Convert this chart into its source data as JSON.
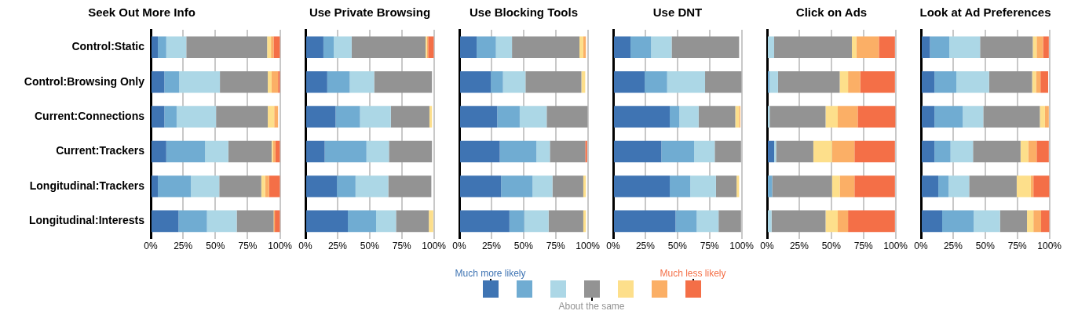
{
  "chart_data": [
    {
      "type": "bar",
      "orientation": "horizontal",
      "stacked": true,
      "title": "Seek Out More Info",
      "categories": [
        "Control:Static",
        "Control:Browsing Only",
        "Current:Connections",
        "Current:Trackers",
        "Longitudinal:Trackers",
        "Longitudinal:Interests"
      ],
      "xlim": [
        0,
        100
      ],
      "xticks": [
        {
          "value": 0,
          "label": "0%"
        },
        {
          "value": 25,
          "label": "25%"
        },
        {
          "value": 50,
          "label": "50%"
        },
        {
          "value": 75,
          "label": "75%"
        },
        {
          "value": 100,
          "label": "100%"
        }
      ],
      "grid": "x",
      "legend": "bottom",
      "series": [
        {
          "name": "Much more likely",
          "color": "#3f74b3",
          "values": [
            5.5,
            10.5,
            10.5,
            12,
            5.5,
            21.5
          ]
        },
        {
          "color": "#70acd2",
          "values": [
            6.5,
            11.5,
            9.5,
            30,
            25.5,
            22
          ]
        },
        {
          "color": "#acd7e6",
          "values": [
            15.5,
            31.5,
            30.5,
            18,
            22,
            23
          ]
        },
        {
          "name": "About the same",
          "color": "#939393",
          "values": [
            62.5,
            37,
            40,
            33.5,
            32.5,
            28.5
          ]
        },
        {
          "color": "#fddf8b",
          "values": [
            3,
            3,
            5,
            1,
            3,
            0
          ]
        },
        {
          "color": "#fbaf66",
          "values": [
            2,
            5,
            3,
            2,
            3,
            1
          ]
        },
        {
          "name": "Much less likely",
          "color": "#f46f47",
          "values": [
            5,
            1.5,
            0,
            3.5,
            8.5,
            4
          ]
        }
      ]
    },
    {
      "type": "bar",
      "orientation": "horizontal",
      "stacked": true,
      "title": "Use Private Browsing",
      "categories": [
        null,
        null,
        null,
        null,
        null,
        null
      ],
      "xlim": [
        0,
        100
      ],
      "xticks": [
        {
          "value": 0,
          "label": "0%"
        },
        {
          "value": 25,
          "label": "25%"
        },
        {
          "value": 50,
          "label": "50%"
        },
        {
          "value": 75,
          "label": "75%"
        },
        {
          "value": 100,
          "label": "100%"
        }
      ],
      "grid": "x",
      "tick_labels": "x",
      "series": [
        {
          "color": "#3f74b3",
          "values": [
            14,
            17,
            23.5,
            15,
            24.5,
            33
          ]
        },
        {
          "color": "#70acd2",
          "values": [
            8,
            17.5,
            19,
            32.5,
            14.5,
            22
          ]
        },
        {
          "color": "#acd7e6",
          "values": [
            14,
            19,
            24,
            17.5,
            25.5,
            15.5
          ]
        },
        {
          "color": "#939393",
          "values": [
            57.5,
            45,
            30,
            33.5,
            33.5,
            25.5
          ]
        },
        {
          "color": "#fddf8b",
          "values": [
            1,
            0,
            2,
            0,
            0,
            3.5
          ]
        },
        {
          "color": "#fbaf66",
          "values": [
            1,
            0,
            0,
            0,
            0,
            0
          ]
        },
        {
          "color": "#f46f47",
          "values": [
            4.5,
            0,
            0,
            0,
            0,
            0
          ]
        }
      ]
    },
    {
      "type": "bar",
      "orientation": "horizontal",
      "stacked": true,
      "title": "Use Blocking Tools",
      "categories": [
        null,
        null,
        null,
        null,
        null,
        null
      ],
      "xlim": [
        0,
        100
      ],
      "xticks": [
        {
          "value": 0,
          "label": "0%"
        },
        {
          "value": 25,
          "label": "25%"
        },
        {
          "value": 50,
          "label": "50%"
        },
        {
          "value": 75,
          "label": "75%"
        },
        {
          "value": 100,
          "label": "100%"
        }
      ],
      "grid": "x",
      "tick_labels": "x",
      "series": [
        {
          "color": "#3f74b3",
          "values": [
            13.5,
            24.5,
            29.5,
            31.5,
            32.5,
            39
          ]
        },
        {
          "color": "#70acd2",
          "values": [
            15,
            9.5,
            17.5,
            28.5,
            24.5,
            11.5
          ]
        },
        {
          "color": "#acd7e6",
          "values": [
            12.5,
            17.5,
            21,
            10.5,
            15.5,
            19
          ]
        },
        {
          "color": "#939393",
          "values": [
            52.5,
            43.5,
            32,
            27.5,
            24,
            27
          ]
        },
        {
          "color": "#fddf8b",
          "values": [
            3,
            3,
            0,
            0,
            2,
            2
          ]
        },
        {
          "color": "#fbaf66",
          "values": [
            2,
            0,
            0,
            0,
            0,
            0
          ]
        },
        {
          "color": "#f46f47",
          "values": [
            0,
            0,
            0,
            1.5,
            0,
            0
          ]
        }
      ]
    },
    {
      "type": "bar",
      "orientation": "horizontal",
      "stacked": true,
      "title": "Use DNT",
      "categories": [
        null,
        null,
        null,
        null,
        null,
        null
      ],
      "xlim": [
        0,
        100
      ],
      "xticks": [
        {
          "value": 0,
          "label": "0%"
        },
        {
          "value": 25,
          "label": "25%"
        },
        {
          "value": 50,
          "label": "50%"
        },
        {
          "value": 75,
          "label": "75%"
        },
        {
          "value": 100,
          "label": "100%"
        }
      ],
      "grid": "x",
      "tick_labels": "x",
      "series": [
        {
          "color": "#3f74b3",
          "values": [
            13.5,
            24.5,
            44,
            37.5,
            44,
            48.5
          ]
        },
        {
          "color": "#70acd2",
          "values": [
            16,
            17.5,
            7.5,
            25.5,
            16,
            16.5
          ]
        },
        {
          "color": "#acd7e6",
          "values": [
            16,
            29.5,
            15,
            16,
            20,
            17
          ]
        },
        {
          "color": "#939393",
          "values": [
            52.5,
            28.5,
            28.5,
            20.5,
            16,
            17.5
          ]
        },
        {
          "color": "#fddf8b",
          "values": [
            0,
            0,
            3,
            0,
            2,
            0
          ]
        },
        {
          "color": "#fbaf66",
          "values": [
            0,
            0,
            1,
            0,
            0,
            0
          ]
        },
        {
          "color": "#f46f47",
          "values": [
            0,
            0,
            0,
            0,
            0,
            0
          ]
        }
      ]
    },
    {
      "type": "bar",
      "orientation": "horizontal",
      "stacked": true,
      "title": "Click on Ads",
      "categories": [
        null,
        null,
        null,
        null,
        null,
        null
      ],
      "xlim": [
        0,
        100
      ],
      "xticks": [
        {
          "value": 0,
          "label": "0%"
        },
        {
          "value": 25,
          "label": "25%"
        },
        {
          "value": 50,
          "label": "50%"
        },
        {
          "value": 75,
          "label": "75%"
        },
        {
          "value": 100,
          "label": "100%"
        }
      ],
      "grid": "x",
      "tick_labels": "x",
      "series": [
        {
          "color": "#3f74b3",
          "values": [
            0,
            0,
            0,
            5.5,
            0,
            0
          ]
        },
        {
          "color": "#70acd2",
          "values": [
            0,
            2,
            0,
            0,
            4,
            0
          ]
        },
        {
          "color": "#acd7e6",
          "values": [
            5.5,
            6.5,
            2,
            1.5,
            0,
            3.5
          ]
        },
        {
          "color": "#939393",
          "values": [
            60.5,
            48,
            43.5,
            29,
            46.5,
            42
          ]
        },
        {
          "color": "#fddf8b",
          "values": [
            3.5,
            6.5,
            9.5,
            14.5,
            6,
            9.5
          ]
        },
        {
          "color": "#fbaf66",
          "values": [
            17.5,
            9.5,
            15.5,
            17.5,
            11.5,
            8
          ]
        },
        {
          "color": "#f46f47",
          "values": [
            12.5,
            27,
            29.5,
            31.5,
            31.5,
            36.5
          ]
        }
      ]
    },
    {
      "type": "bar",
      "orientation": "horizontal",
      "stacked": true,
      "title": "Look at Ad Preferences",
      "categories": [
        null,
        null,
        null,
        null,
        null,
        null
      ],
      "xlim": [
        0,
        100
      ],
      "xticks": [
        {
          "value": 0,
          "label": "0%"
        },
        {
          "value": 25,
          "label": "25%"
        },
        {
          "value": 50,
          "label": "50%"
        },
        {
          "value": 75,
          "label": "75%"
        },
        {
          "value": 100,
          "label": "100%"
        }
      ],
      "grid": "x",
      "tick_labels": "x",
      "series": [
        {
          "color": "#3f74b3",
          "values": [
            7,
            10.5,
            10.5,
            10.5,
            13.5,
            16.5
          ]
        },
        {
          "color": "#70acd2",
          "values": [
            15,
            17,
            22,
            12.5,
            8,
            24.5
          ]
        },
        {
          "color": "#acd7e6",
          "values": [
            24,
            25.5,
            16,
            17.5,
            16,
            20.5
          ]
        },
        {
          "color": "#939393",
          "values": [
            41,
            33.5,
            44,
            37,
            37,
            21
          ]
        },
        {
          "color": "#fddf8b",
          "values": [
            3,
            3,
            4,
            6,
            11,
            5
          ]
        },
        {
          "color": "#fbaf66",
          "values": [
            5,
            3.5,
            3,
            6.5,
            2,
            6
          ]
        },
        {
          "color": "#f46f47",
          "values": [
            4.5,
            6,
            0,
            9.5,
            12.5,
            6.5
          ]
        }
      ]
    }
  ]
}
